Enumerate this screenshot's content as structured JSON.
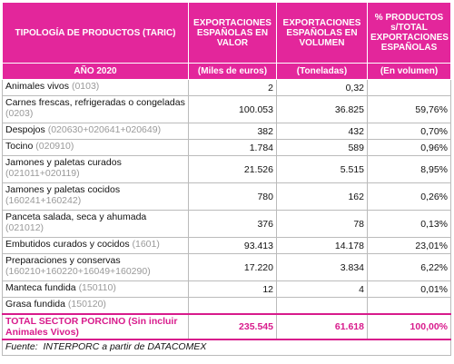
{
  "table": {
    "header": [
      "TIPOLOGÍA DE PRODUCTOS (TARIC)",
      "EXPORTACIONES ESPAÑOLAS EN VALOR",
      "EXPORTACIONES ESPAÑOLAS EN VOLUMEN",
      "% PRODUCTOS s/TOTAL EXPORTACIONES ESPAÑOLAS"
    ],
    "subheader": [
      "AÑO 2020",
      "(Miles de euros)",
      "(Toneladas)",
      "(En volumen)"
    ],
    "rows": [
      {
        "name": "Animales vivos",
        "code": "(0103)",
        "cells": [
          "2",
          "0,32",
          null
        ]
      },
      {
        "name": "Carnes frescas, refrigeradas o congeladas",
        "code": "(0203)",
        "cells": [
          "100.053",
          "36.825",
          "59,76%"
        ]
      },
      {
        "name": "Despojos",
        "code": "(020630+020641+020649)",
        "cells": [
          "382",
          "432",
          "0,70%"
        ]
      },
      {
        "name": "Tocino",
        "code": "(020910)",
        "cells": [
          "1.784",
          "589",
          "0,96%"
        ]
      },
      {
        "name": "Jamones y paletas curados",
        "code": "(021011+020119)",
        "cells": [
          "21.526",
          "5.515",
          "8,95%"
        ]
      },
      {
        "name": "Jamones y paletas cocidos",
        "code": "(160241+160242)",
        "cells": [
          "780",
          "162",
          "0,26%"
        ]
      },
      {
        "name": "Panceta salada, seca y ahumada",
        "code": "(021012)",
        "cells": [
          "376",
          "78",
          "0,13%"
        ]
      },
      {
        "name": "Embutidos curados y cocidos",
        "code": "(1601)",
        "cells": [
          "93.413",
          "14.178",
          "23,01%"
        ]
      },
      {
        "name": "Preparaciones y conservas",
        "code": "(160210+160220+16049+160290)",
        "cells": [
          "17.220",
          "3.834",
          "6,22%"
        ]
      },
      {
        "name": "Manteca fundida",
        "code": "(150110)",
        "cells": [
          "12",
          "4",
          "0,01%"
        ]
      },
      {
        "name": "Grasa fundida",
        "code": "(150120)",
        "cells": [
          null,
          null,
          null
        ]
      }
    ],
    "total": [
      "TOTAL SECTOR PORCINO (Sin incluir Animales Vivos)",
      "235.545",
      "61.618",
      "100,00%"
    ],
    "source": "Fuente:  INTERPORC a partir de DATACOMEX"
  }
}
